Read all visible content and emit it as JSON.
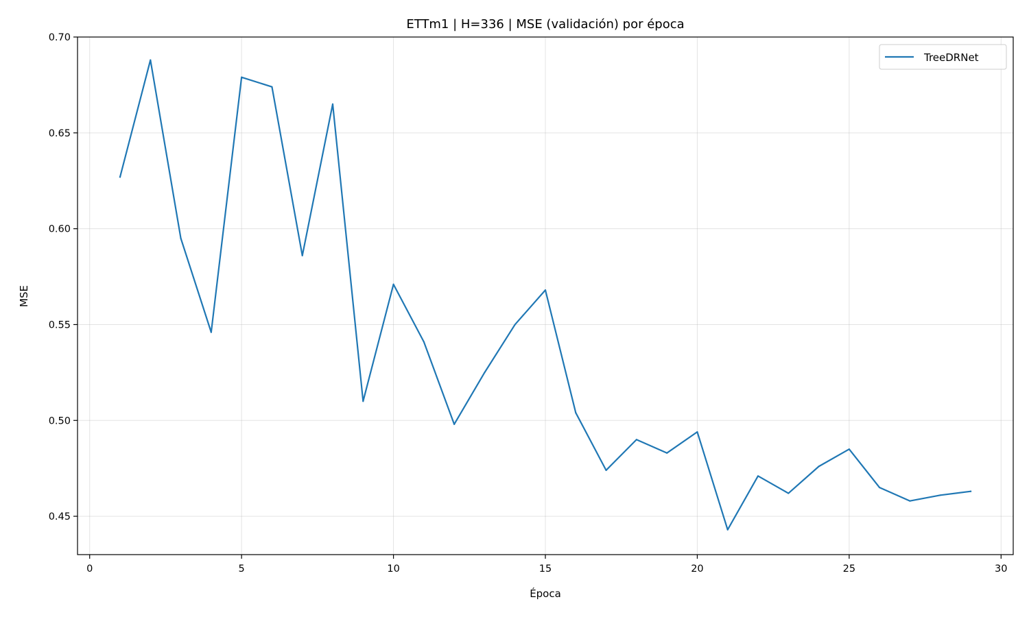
{
  "chart_data": {
    "type": "line",
    "title": "ETTm1 | H=336 | MSE (validación) por época",
    "xlabel": "Época",
    "ylabel": "MSE",
    "xlim": [
      -0.4,
      30.4
    ],
    "ylim": [
      0.43,
      0.7
    ],
    "xticks": [
      0,
      5,
      10,
      15,
      20,
      25,
      30
    ],
    "yticks": [
      0.45,
      0.5,
      0.55,
      0.6,
      0.65,
      0.7
    ],
    "ytick_labels": [
      "0.45",
      "0.50",
      "0.55",
      "0.60",
      "0.65",
      "0.70"
    ],
    "grid": true,
    "legend_position": "top-right",
    "series": [
      {
        "name": "TreeDRNet",
        "color": "#1f77b4",
        "x": [
          1,
          2,
          3,
          4,
          5,
          6,
          7,
          8,
          9,
          10,
          11,
          12,
          13,
          14,
          15,
          16,
          17,
          18,
          19,
          20,
          21,
          22,
          23,
          24,
          25,
          26,
          27,
          28,
          29
        ],
        "y": [
          0.627,
          0.688,
          0.595,
          0.546,
          0.679,
          0.674,
          0.586,
          0.665,
          0.51,
          0.571,
          0.541,
          0.498,
          0.525,
          0.55,
          0.568,
          0.504,
          0.474,
          0.49,
          0.483,
          0.494,
          0.443,
          0.471,
          0.462,
          0.476,
          0.485,
          0.465,
          0.458,
          0.461,
          0.463
        ]
      }
    ]
  }
}
